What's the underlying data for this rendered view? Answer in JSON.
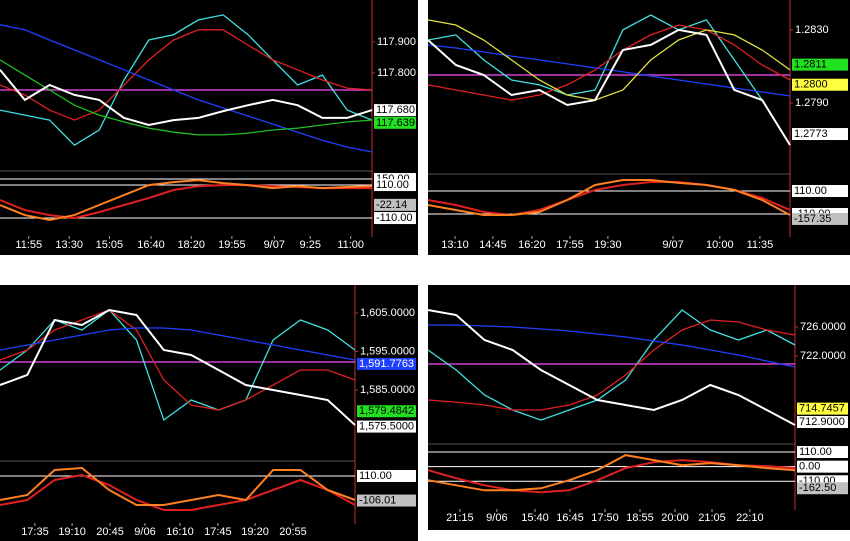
{
  "chart_data": [
    {
      "type": "line",
      "xlim": [
        0,
        15
      ],
      "xticks": [
        {
          "value": 1.16,
          "label": "11:55"
        },
        {
          "value": 2.79,
          "label": "13:30"
        },
        {
          "value": 4.41,
          "label": "15:05"
        },
        {
          "value": 6.09,
          "label": "16:40"
        },
        {
          "value": 7.71,
          "label": "18:20"
        },
        {
          "value": 9.35,
          "label": "19:55"
        },
        {
          "value": 11.06,
          "label": "9/07"
        },
        {
          "value": 12.51,
          "label": "9:25"
        },
        {
          "value": 14.14,
          "label": "11:00"
        }
      ],
      "ylim": [
        117.487,
        118.035
      ],
      "yticks": [
        {
          "value": 117.9,
          "label": "117.900"
        },
        {
          "value": 117.8,
          "label": "117.800"
        }
      ],
      "hline": {
        "value": 117.745,
        "color": "#d040d0"
      },
      "series": [
        {
          "color": "#40e0e0",
          "values": [
            117.68,
            117.664,
            117.648,
            117.567,
            117.616,
            117.777,
            117.906,
            117.923,
            117.971,
            117.987,
            117.923,
            117.842,
            117.761,
            117.793,
            117.68,
            117.648
          ]
        },
        {
          "color": "#e02020",
          "values": [
            117.761,
            117.729,
            117.68,
            117.648,
            117.68,
            117.761,
            117.842,
            117.906,
            117.939,
            117.939,
            117.89,
            117.842,
            117.81,
            117.777,
            117.751,
            117.745
          ]
        },
        {
          "color": "#2040ff",
          "values": [
            117.955,
            117.939,
            117.906,
            117.874,
            117.842,
            117.81,
            117.777,
            117.745,
            117.713,
            117.687,
            117.661,
            117.635,
            117.609,
            117.583,
            117.561,
            117.545
          ]
        },
        {
          "color": "#20c020",
          "values": [
            117.842,
            117.793,
            117.745,
            117.696,
            117.664,
            117.642,
            117.622,
            117.609,
            117.6,
            117.6,
            117.606,
            117.616,
            117.622,
            117.632,
            117.642,
            117.648
          ]
        },
        {
          "color": "#ffffff",
          "values": [
            117.81,
            117.713,
            117.761,
            117.729,
            117.713,
            117.655,
            117.632,
            117.648,
            117.655,
            117.677,
            117.696,
            117.713,
            117.696,
            117.655,
            117.655,
            117.68
          ]
        }
      ],
      "price_labels": [
        {
          "value": 117.68,
          "label": "117.680",
          "color": "#ffffff"
        },
        {
          "value": 117.639,
          "label": "117.639",
          "color": "#20e020"
        }
      ],
      "oscillator": {
        "ylim": [
          -203,
          197
        ],
        "yticks": [
          {
            "value": 150,
            "label": "150.00"
          },
          {
            "value": 110,
            "label": "110.00"
          },
          {
            "value": -110,
            "label": "-110.00"
          }
        ],
        "series": [
          {
            "color": "#e02020",
            "values": [
              10,
              -57,
              -90,
              -110,
              -70,
              -23,
              23,
              77,
              103,
              110,
              110,
              103,
              97,
              90,
              90,
              90
            ]
          },
          {
            "color": "#ff8020",
            "values": [
              -23,
              -90,
              -123,
              -90,
              -23,
              43,
              110,
              130,
              143,
              123,
              110,
              90,
              103,
              90,
              97,
              103
            ]
          }
        ],
        "labels": [
          {
            "value": -22.14,
            "label": "-22.14",
            "color": "#c0c0c0"
          }
        ]
      }
    },
    {
      "type": "line",
      "xlim": [
        0,
        13
      ],
      "xticks": [
        {
          "value": 0.97,
          "label": "13:10"
        },
        {
          "value": 2.33,
          "label": "14:45"
        },
        {
          "value": 3.73,
          "label": "16:20"
        },
        {
          "value": 5.1,
          "label": "17:55"
        },
        {
          "value": 6.46,
          "label": "19:30"
        },
        {
          "value": 8.8,
          "label": "9/07"
        },
        {
          "value": 10.48,
          "label": "10:00"
        },
        {
          "value": 11.92,
          "label": "11:35"
        }
      ],
      "ylim": [
        1.27533,
        1.28464
      ],
      "yticks": [
        {
          "value": 1.283,
          "label": "1.2830"
        },
        {
          "value": 1.279,
          "label": "1.2790"
        }
      ],
      "hline": {
        "value": 1.28053,
        "color": "#d040d0"
      },
      "series": [
        {
          "color": "#40e0e0",
          "values": [
            1.28245,
            1.28273,
            1.28136,
            1.28026,
            1.27999,
            1.27944,
            1.27971,
            1.283,
            1.28382,
            1.283,
            1.28355,
            1.28136,
            1.27916,
            1.2767
          ]
        },
        {
          "color": "#e02020",
          "values": [
            1.27999,
            1.27971,
            1.27944,
            1.27916,
            1.27944,
            1.27999,
            1.28081,
            1.2819,
            1.28273,
            1.28327,
            1.283,
            1.28218,
            1.28108,
            1.28026
          ]
        },
        {
          "color": "#2040ff",
          "values": [
            1.28218,
            1.28201,
            1.28179,
            1.28157,
            1.28136,
            1.28114,
            1.28092,
            1.2807,
            1.28048,
            1.28026,
            1.28004,
            1.27982,
            1.2796,
            1.27938
          ]
        },
        {
          "color": "#e0e040",
          "values": [
            1.28355,
            1.28327,
            1.28245,
            1.28136,
            1.28026,
            1.27944,
            1.27916,
            1.27971,
            1.28136,
            1.28245,
            1.283,
            1.28273,
            1.2819,
            1.28081
          ]
        },
        {
          "color": "#ffffff",
          "values": [
            1.28245,
            1.28108,
            1.28053,
            1.27944,
            1.27971,
            1.27889,
            1.27916,
            1.2819,
            1.28218,
            1.283,
            1.28273,
            1.27971,
            1.27916,
            1.2767
          ]
        }
      ],
      "price_labels": [
        {
          "value": 1.2811,
          "label": "1.2811",
          "color": "#20e020"
        },
        {
          "value": 1.28,
          "label": "1.2800",
          "color": "#ffff40"
        },
        {
          "value": 1.2773,
          "label": "1.2773",
          "color": "#ffffff"
        }
      ],
      "oscillator": {
        "ylim": [
          -311,
          263
        ],
        "yticks": [
          {
            "value": 110,
            "label": "110.00"
          },
          {
            "value": -110,
            "label": "-110.00"
          }
        ],
        "series": [
          {
            "color": "#e02020",
            "values": [
              24,
              -24,
              -91,
              -120,
              -72,
              24,
              120,
              167,
              196,
              196,
              167,
              120,
              43,
              -72
            ]
          },
          {
            "color": "#ff8020",
            "values": [
              -24,
              -72,
              -120,
              -120,
              -91,
              24,
              167,
              215,
              215,
              187,
              167,
              120,
              24,
              -120
            ]
          }
        ],
        "labels": [
          {
            "value": -157.35,
            "label": "-157.35",
            "color": "#c0c0c0"
          }
        ]
      }
    },
    {
      "type": "line",
      "xlim": [
        0,
        13
      ],
      "xticks": [
        {
          "value": 1.28,
          "label": "17:35"
        },
        {
          "value": 2.64,
          "label": "19:10"
        },
        {
          "value": 4.03,
          "label": "20:45"
        },
        {
          "value": 5.31,
          "label": "9/06"
        },
        {
          "value": 6.59,
          "label": "16:10"
        },
        {
          "value": 7.98,
          "label": "17:45"
        },
        {
          "value": 9.34,
          "label": "19:20"
        },
        {
          "value": 10.73,
          "label": "20:55"
        }
      ],
      "ylim": [
        1566.82,
        1612.27
      ],
      "yticks": [
        {
          "value": 1605,
          "label": "1,605.0000"
        },
        {
          "value": 1595,
          "label": "1,595.0000"
        },
        {
          "value": 1585,
          "label": "1,585.0000"
        }
      ],
      "hline": {
        "value": 1592.27,
        "color": "#d040d0"
      },
      "series": [
        {
          "color": "#40e0e0",
          "values": [
            1590.2,
            1595.39,
            1603.18,
            1600.58,
            1605.78,
            1597.99,
            1577.21,
            1582.4,
            1579.81,
            1582.4,
            1597.99,
            1603.18,
            1600.58,
            1595.39
          ]
        },
        {
          "color": "#e02020",
          "values": [
            1592.79,
            1595.39,
            1600.58,
            1603.18,
            1605.78,
            1600.58,
            1587.6,
            1581.11,
            1579.81,
            1582.4,
            1586.3,
            1590.2,
            1590.2,
            1587.6
          ]
        },
        {
          "color": "#2040ff",
          "values": [
            1595.39,
            1596.69,
            1597.99,
            1599.29,
            1600.58,
            1601.1,
            1601.1,
            1600.58,
            1599.29,
            1597.99,
            1596.69,
            1595.39,
            1594.09,
            1592.79
          ]
        },
        {
          "color": "#ffffff",
          "values": [
            1586.3,
            1588.9,
            1603.18,
            1601.88,
            1605.78,
            1604.48,
            1595.39,
            1594.09,
            1590.2,
            1586.3,
            1585.0,
            1583.7,
            1582.4,
            1575.91
          ]
        }
      ],
      "price_labels": [
        {
          "value": 1591.7763,
          "label": "1,591.7763",
          "color": "#2040ff"
        },
        {
          "value": 1579.4842,
          "label": "1,579.4842",
          "color": "#20e020"
        },
        {
          "value": 1575.5,
          "label": "1,575.5000",
          "color": "#ffffff"
        }
      ],
      "oscillator": {
        "ylim": [
          -277,
          233
        ],
        "yticks": [
          {
            "value": 110,
            "label": "110.00"
          }
        ],
        "series": [
          {
            "color": "#e02020",
            "values": [
              -145,
              -101,
              75,
              119,
              31,
              -101,
              -189,
              -189,
              -145,
              -101,
              -13,
              75,
              -13,
              -145
            ]
          },
          {
            "color": "#ff8020",
            "values": [
              -101,
              -57,
              163,
              180,
              -13,
              -145,
              -145,
              -101,
              -57,
              -101,
              163,
              163,
              -13,
              -101
            ]
          }
        ],
        "labels": [
          {
            "value": -106.01,
            "label": "-106.01",
            "color": "#c0c0c0"
          }
        ]
      }
    },
    {
      "type": "line",
      "xlim": [
        0,
        13
      ],
      "xticks": [
        {
          "value": 1.13,
          "label": "21:15"
        },
        {
          "value": 2.44,
          "label": "9/06"
        },
        {
          "value": 3.79,
          "label": "15:40"
        },
        {
          "value": 5.03,
          "label": "16:45"
        },
        {
          "value": 6.27,
          "label": "17:50"
        },
        {
          "value": 7.51,
          "label": "18:55"
        },
        {
          "value": 8.75,
          "label": "20:00"
        },
        {
          "value": 10.06,
          "label": "21:05"
        },
        {
          "value": 11.4,
          "label": "22:10"
        }
      ],
      "ylim": [
        710.42,
        731.79
      ],
      "yticks": [
        {
          "value": 726,
          "label": "726.0000"
        },
        {
          "value": 722,
          "label": "722.0000"
        }
      ],
      "hline": {
        "value": 720.9,
        "color": "#d040d0"
      },
      "series": [
        {
          "color": "#40e0e0",
          "values": [
            722.83,
            720.07,
            716.62,
            714.55,
            713.17,
            714.55,
            715.93,
            718.69,
            724.21,
            728.34,
            725.59,
            724.21,
            725.59,
            723.52
          ]
        },
        {
          "color": "#e02020",
          "values": [
            715.93,
            715.65,
            715.24,
            714.55,
            714.55,
            715.24,
            716.62,
            719.38,
            722.83,
            725.59,
            726.97,
            726.69,
            725.59,
            724.9
          ]
        },
        {
          "color": "#2040ff",
          "values": [
            726.28,
            726.28,
            726.14,
            726.0,
            725.72,
            725.45,
            725.03,
            724.62,
            724.07,
            723.52,
            722.83,
            722.14,
            721.31,
            720.48
          ]
        },
        {
          "color": "#ffffff",
          "values": [
            728.34,
            727.65,
            724.21,
            722.83,
            720.07,
            718.0,
            715.93,
            715.24,
            714.55,
            715.93,
            718.0,
            716.62,
            714.55,
            712.49
          ]
        }
      ],
      "price_labels": [
        {
          "value": 714.7457,
          "label": "714.7457",
          "color": "#ffff40"
        },
        {
          "value": 712.9,
          "label": "712.9000",
          "color": "#ffffff"
        }
      ],
      "oscillator": {
        "ylim": [
          -251,
          163
        ],
        "yticks": [
          {
            "value": 110,
            "label": "110.00"
          },
          {
            "value": 0,
            "label": "0.00"
          },
          {
            "value": -110,
            "label": "-110.00"
          }
        ],
        "series": [
          {
            "color": "#e02020",
            "values": [
              -27,
              -87,
              -140,
              -178,
              -193,
              -178,
              -102,
              -11,
              34,
              49,
              34,
              11,
              4,
              -11
            ]
          },
          {
            "color": "#ff8020",
            "values": [
              -102,
              -140,
              -178,
              -178,
              -163,
              -102,
              -27,
              87,
              49,
              11,
              27,
              11,
              -11,
              -27
            ]
          }
        ],
        "labels": [
          {
            "value": -162.5,
            "label": "-162.50",
            "color": "#c0c0c0"
          }
        ]
      }
    }
  ]
}
